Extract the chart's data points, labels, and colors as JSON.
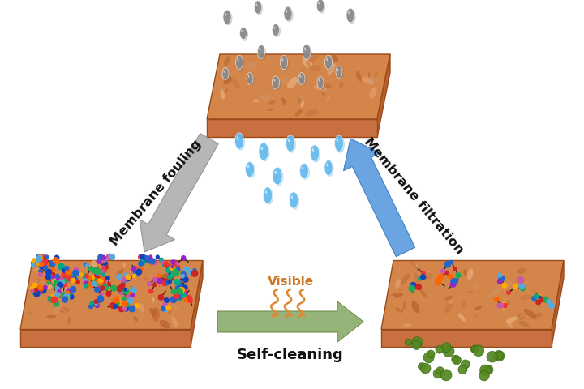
{
  "bg_color": "#ffffff",
  "mem_top_color": "#d4854a",
  "mem_side_color": "#b86030",
  "mem_front_color": "#c87040",
  "mem_edge_color": "#9a4a18",
  "drop_gray": "#8a8a8a",
  "drop_blue": "#66bbee",
  "drop_gray_shadow": "#666666",
  "drop_blue_shadow": "#4499cc",
  "arrow_fouling_color": "#aaaaaa",
  "arrow_fouling_edge": "#888888",
  "arrow_filtration_color": "#5599dd",
  "arrow_filtration_edge": "#3377bb",
  "arrow_clean_color": "#88aa66",
  "arrow_clean_edge": "#668844",
  "text_fouling": "Membrane fouling",
  "text_filtration": "Membrane filtration",
  "text_selfcleaning": "Self-cleaning",
  "text_visible": "Visible",
  "visible_color": "#cc7722",
  "wavy_color": "#dd8833",
  "green_color": "#558822",
  "green_edge": "#336611"
}
